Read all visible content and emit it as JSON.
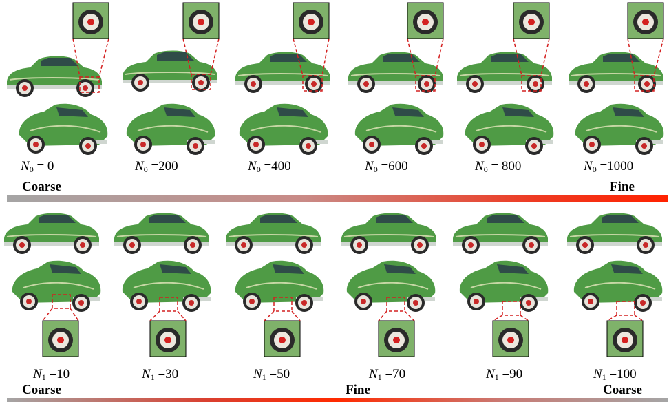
{
  "top_row": {
    "variable": "N",
    "subscript": "0",
    "values": [
      "0",
      "200",
      "400",
      "600",
      "800",
      "1000"
    ],
    "left_word": "Coarse",
    "right_word": "Fine"
  },
  "bottom_row": {
    "variable": "N",
    "subscript": "1",
    "values": [
      "10",
      "30",
      "50",
      "70",
      "90",
      "100"
    ],
    "left_word": "Coarse",
    "middle_word": "Fine",
    "right_word": "Coarse"
  },
  "colors": {
    "car_green": "#4f9b45",
    "car_dark": "#2f6b2c",
    "zoom_dash": "#d42020",
    "bar_start": "#a5a5a5",
    "bar_peak": "#ff2200"
  }
}
